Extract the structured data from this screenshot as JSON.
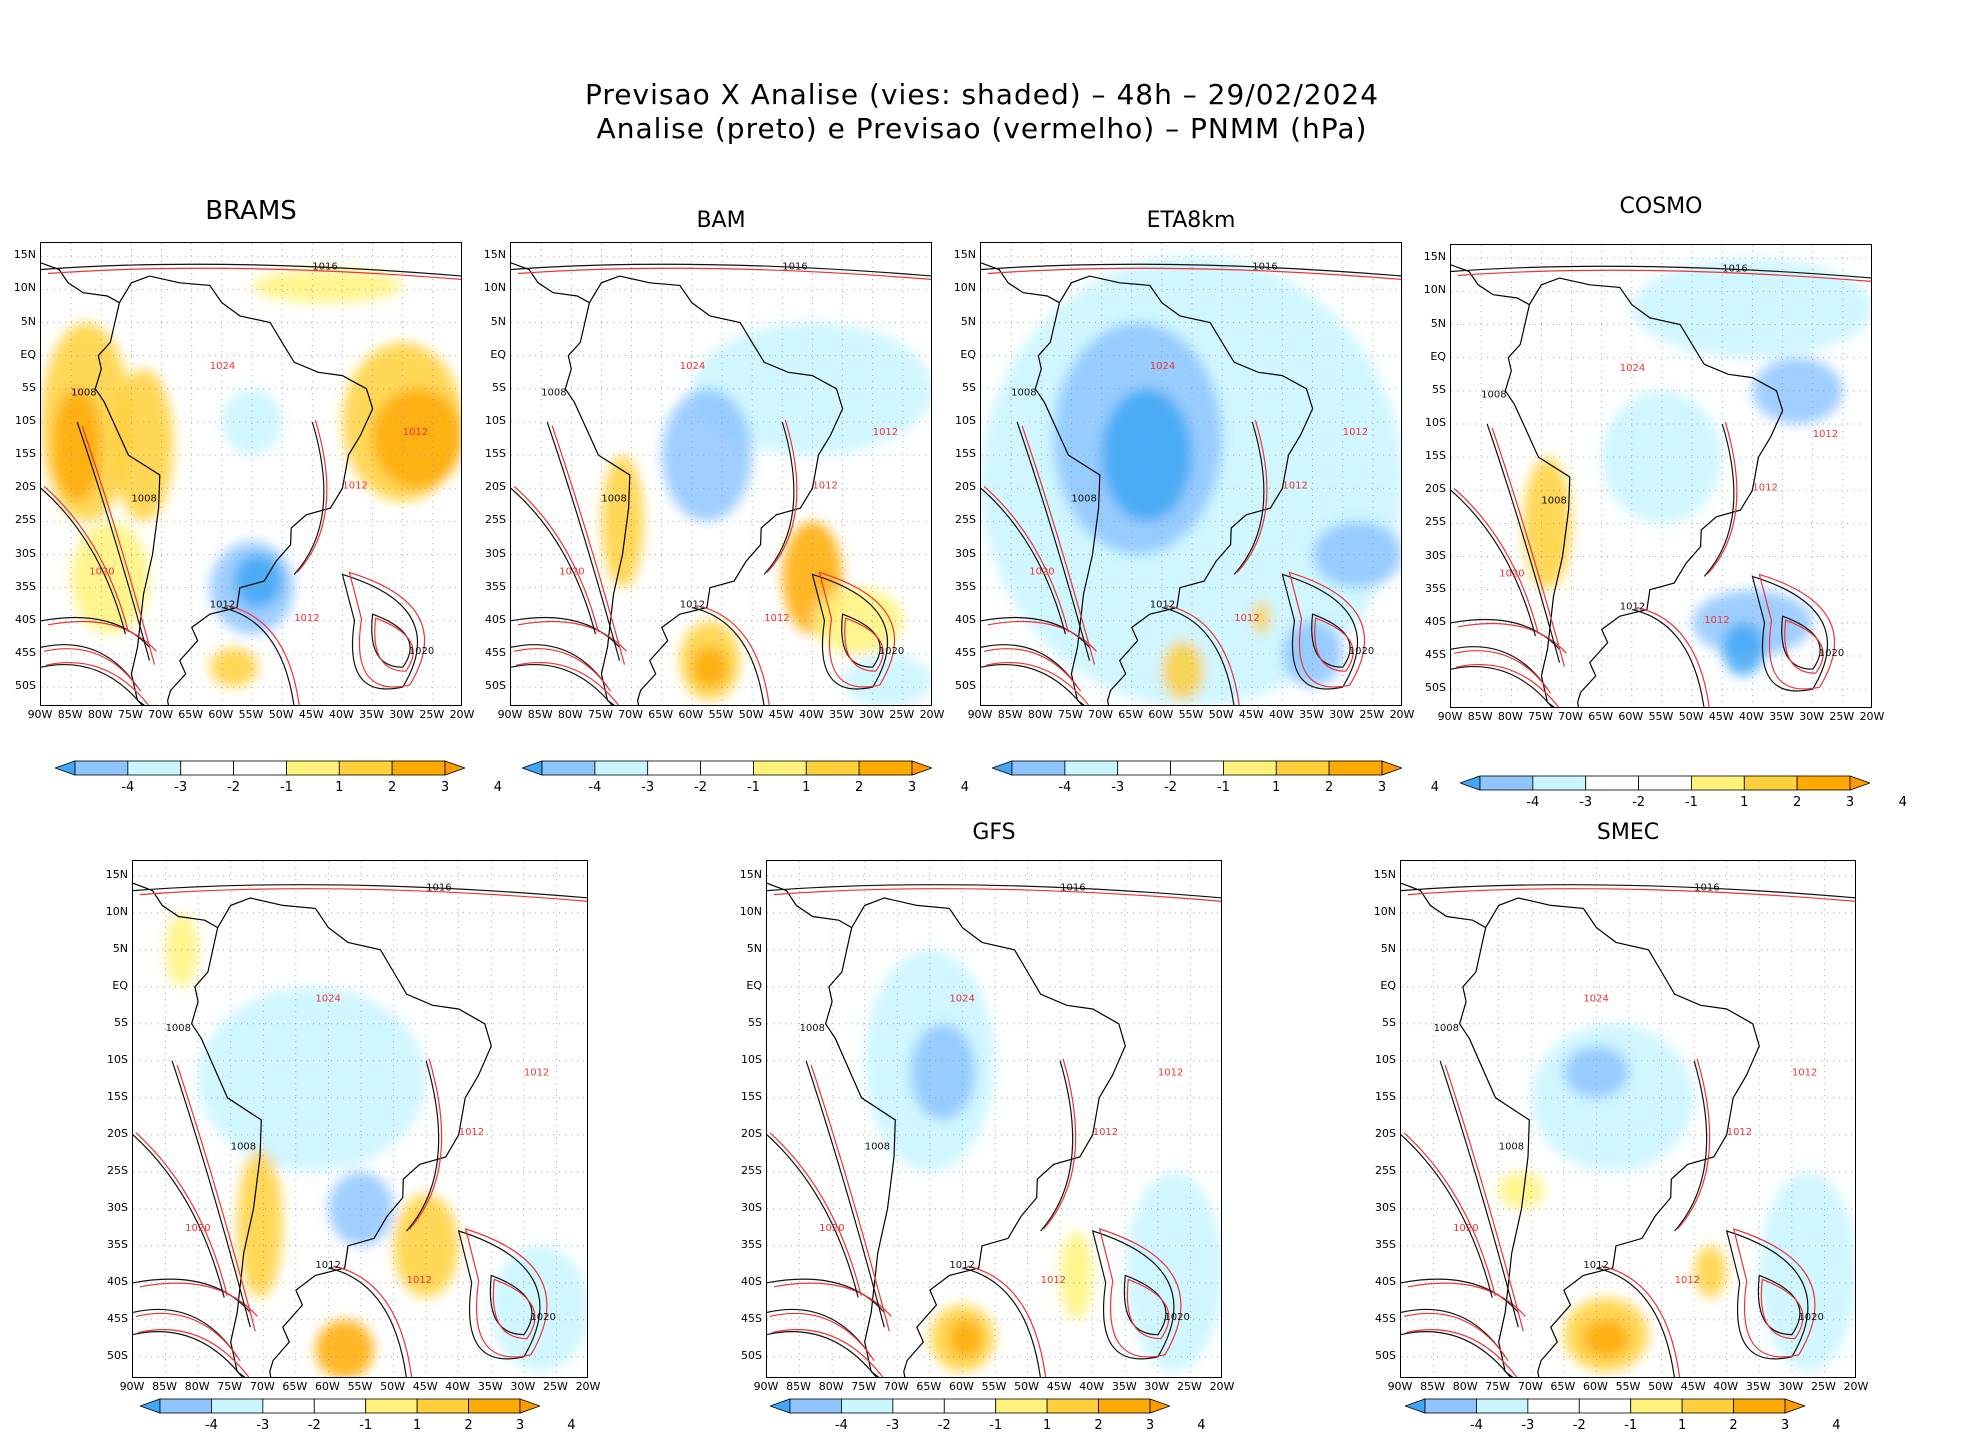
{
  "title": {
    "line1": "Previsao X Analise (vies: shaded) – 48h – 29/02/2024",
    "line2": "Analise (preto) e Previsao (vermelho) – PNMM (hPa)"
  },
  "lat_labels": [
    "15N",
    "10N",
    "5N",
    "EQ",
    "5S",
    "10S",
    "15S",
    "20S",
    "25S",
    "30S",
    "35S",
    "40S",
    "45S",
    "50S"
  ],
  "lon_labels": [
    "90W",
    "85W",
    "80W",
    "75W",
    "70W",
    "65W",
    "60W",
    "55W",
    "50W",
    "45W",
    "40W",
    "35W",
    "30W",
    "25W",
    "20W"
  ],
  "colorbar": {
    "labels": [
      "-4",
      "-3",
      "-2",
      "-1",
      "1",
      "2",
      "3",
      "4"
    ],
    "colors": [
      "#3fa7f5",
      "#8ec5ff",
      "#c8f5ff",
      "#ffffff",
      "#ffffff",
      "#fff27a",
      "#ffd03b",
      "#ffaa00",
      "#ff9a00"
    ]
  },
  "panels": [
    {
      "name": "BRAMS",
      "isobars": [
        "1012",
        "1016",
        "1008",
        "1020",
        "1024"
      ]
    },
    {
      "name": "BAM",
      "isobars": [
        "1012",
        "1016",
        "1008",
        "1020",
        "1024"
      ]
    },
    {
      "name": "ETA8km",
      "isobars": [
        "1012",
        "1016",
        "1008",
        "1020",
        "1024"
      ]
    },
    {
      "name": "COSMO",
      "isobars": [
        "1012",
        "1016",
        "1008",
        "1020",
        "1024"
      ]
    },
    {
      "name": "",
      "isobars": [
        "1012",
        "1016",
        "1008",
        "1020",
        "1024"
      ]
    },
    {
      "name": "GFS",
      "isobars": [
        "1012",
        "1016",
        "1008",
        "1020",
        "1024"
      ]
    },
    {
      "name": "SMEC",
      "isobars": [
        "1012",
        "1016",
        "1008",
        "1020",
        "1024"
      ]
    }
  ]
}
